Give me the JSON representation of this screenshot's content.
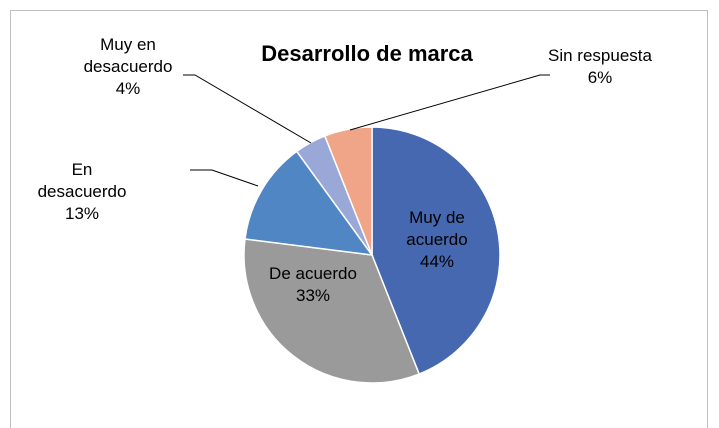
{
  "chart_data": {
    "type": "pie",
    "title": "Desarrollo de marca",
    "categories": [
      "Muy de acuerdo",
      "De acuerdo",
      "En desacuerdo",
      "Muy en desacuerdo",
      "Sin respuesta"
    ],
    "values": [
      44,
      33,
      13,
      4,
      6
    ],
    "value_labels": [
      "44%",
      "33%",
      "13%",
      "4%",
      "6%"
    ],
    "colors": [
      "#4568b0",
      "#9a9a9a",
      "#4f86c3",
      "#9aa8d8",
      "#f0a488"
    ]
  }
}
